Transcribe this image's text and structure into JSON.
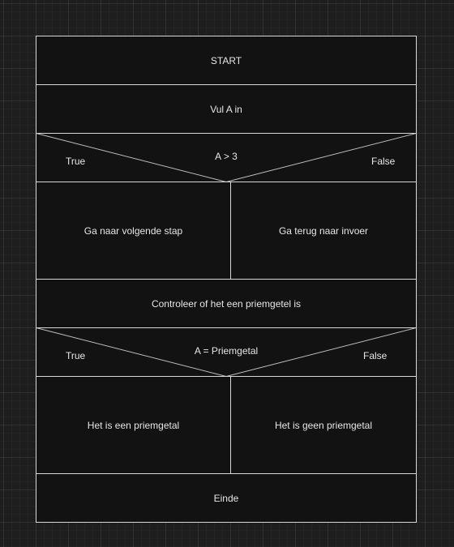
{
  "diagram": {
    "start": "START",
    "input": "Vul A in",
    "condition1": {
      "question": "A > 3",
      "true_label": "True",
      "false_label": "False",
      "true_branch": "Ga naar volgende stap",
      "false_branch": "Ga terug naar invoer"
    },
    "check": "Controleer of het een priemgetel is",
    "condition2": {
      "question": "A = Priemgetal",
      "true_label": "True",
      "false_label": "False",
      "true_branch": "Het is een priemgetal",
      "false_branch": "Het is geen priemgetal"
    },
    "end": "Einde"
  },
  "colors": {
    "canvas_background": "#1e1e1e",
    "block_fill": "#121212",
    "block_stroke": "#d8d8d8",
    "text": "#e6e6e6"
  }
}
